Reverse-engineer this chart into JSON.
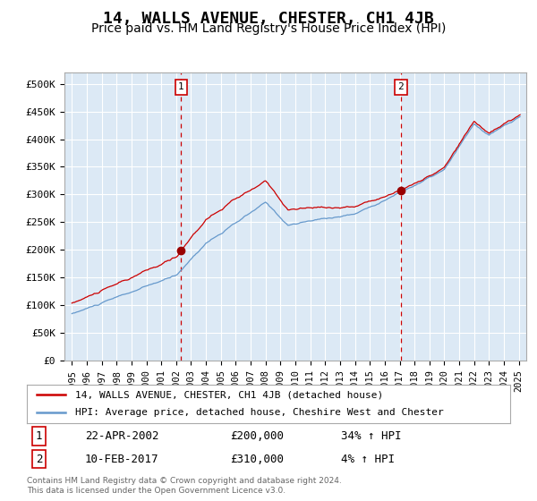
{
  "title": "14, WALLS AVENUE, CHESTER, CH1 4JB",
  "subtitle": "Price paid vs. HM Land Registry's House Price Index (HPI)",
  "title_fontsize": 13,
  "subtitle_fontsize": 10,
  "background_color": "#ffffff",
  "plot_bg_color": "#dce9f5",
  "grid_color": "#ffffff",
  "purchase1": {
    "date_num": 2002.31,
    "price": 200000,
    "label": "1"
  },
  "purchase2": {
    "date_num": 2017.11,
    "price": 310000,
    "label": "2"
  },
  "legend_line1": "14, WALLS AVENUE, CHESTER, CH1 4JB (detached house)",
  "legend_line2": "HPI: Average price, detached house, Cheshire West and Chester",
  "table_row1": [
    "1",
    "22-APR-2002",
    "£200,000",
    "34% ↑ HPI"
  ],
  "table_row2": [
    "2",
    "10-FEB-2017",
    "£310,000",
    "4% ↑ HPI"
  ],
  "footnote": "Contains HM Land Registry data © Crown copyright and database right 2024.\nThis data is licensed under the Open Government Licence v3.0.",
  "hpi_red_color": "#cc0000",
  "hpi_blue_color": "#6699cc",
  "dot_color": "#990000",
  "dashed_line_color": "#cc0000",
  "marker_box_color": "#cc0000",
  "ylim": [
    0,
    520000
  ],
  "xlim_start": 1994.5,
  "xlim_end": 2025.5,
  "yticks": [
    0,
    50000,
    100000,
    150000,
    200000,
    250000,
    300000,
    350000,
    400000,
    450000,
    500000
  ],
  "ytick_labels": [
    "£0",
    "£50K",
    "£100K",
    "£150K",
    "£200K",
    "£250K",
    "£300K",
    "£350K",
    "£400K",
    "£450K",
    "£500K"
  ]
}
